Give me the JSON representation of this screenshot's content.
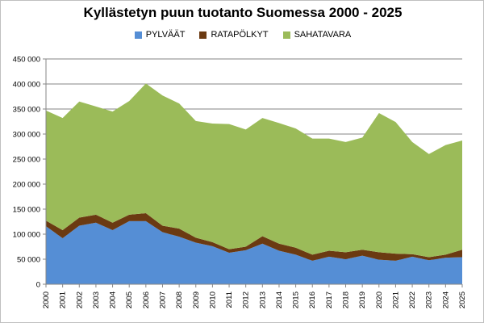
{
  "chart_data": {
    "type": "area",
    "stacked": true,
    "title": "Kyllästetyn puun tuotanto Suomessa 2000 - 2025",
    "x": [
      "2000",
      "2001",
      "2002",
      "2003",
      "2004",
      "2005",
      "2006",
      "2007",
      "2008",
      "2009",
      "2010",
      "2011",
      "2012",
      "2013",
      "2014",
      "2015",
      "2016",
      "2017",
      "2018",
      "2019",
      "2020",
      "2021",
      "2022",
      "2023",
      "2024",
      "2025"
    ],
    "series": [
      {
        "name": "PYLVÄÄT",
        "color": "#558ed5",
        "values": [
          116000,
          92000,
          117000,
          123000,
          108000,
          126000,
          126000,
          104000,
          95000,
          83000,
          76000,
          63000,
          68000,
          81000,
          67000,
          59000,
          47000,
          55000,
          50000,
          57000,
          49000,
          47000,
          55000,
          48000,
          53000,
          54000
        ]
      },
      {
        "name": "RATAPÖLKYT",
        "color": "#6b3a12",
        "values": [
          11000,
          16000,
          16000,
          16000,
          15000,
          13000,
          16000,
          13000,
          16000,
          10000,
          8000,
          7000,
          7000,
          15000,
          14000,
          14000,
          12000,
          12000,
          14000,
          12000,
          15000,
          14000,
          5000,
          6000,
          6000,
          15000
        ]
      },
      {
        "name": "SAHATAVARA",
        "color": "#9bbb59",
        "values": [
          220000,
          224000,
          232000,
          216000,
          222000,
          227000,
          259000,
          260000,
          250000,
          233000,
          237000,
          250000,
          234000,
          236000,
          241000,
          238000,
          232000,
          224000,
          220000,
          224000,
          278000,
          263000,
          224000,
          206000,
          219000,
          218000
        ]
      }
    ],
    "ylim": [
      0,
      450000
    ],
    "yticks": [
      0,
      50000,
      100000,
      150000,
      200000,
      250000,
      300000,
      350000,
      400000,
      450000
    ],
    "ytick_labels": [
      "0",
      "50 000",
      "100 000",
      "150 000",
      "200 000",
      "250 000",
      "300 000",
      "350 000",
      "400 000",
      "450 000"
    ],
    "grid": true,
    "legend_position": "top"
  }
}
